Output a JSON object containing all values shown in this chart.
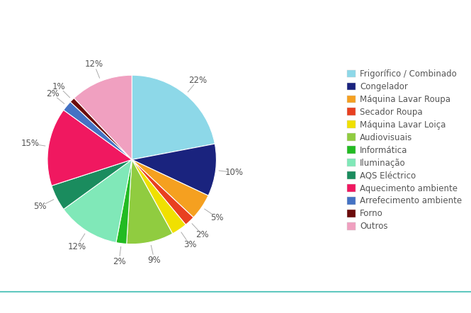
{
  "labels": [
    "Frigorífico / Combinado",
    "Congelador",
    "Máquina Lavar Roupa",
    "Secador Roupa",
    "Máquina Lavar Loiça",
    "Audiovisuais",
    "Informática",
    "Iluminação",
    "AQS Eléctrico",
    "Aquecimento ambiente",
    "Arrefecimento ambiente",
    "Forno",
    "Outros"
  ],
  "values": [
    22,
    10,
    5,
    2,
    3,
    9,
    2,
    12,
    5,
    15,
    2,
    1,
    12
  ],
  "colors": [
    "#8dd8e8",
    "#1a237e",
    "#f5a020",
    "#e84020",
    "#f0e000",
    "#90cc40",
    "#22bb22",
    "#80e8b8",
    "#1a8c5e",
    "#f01860",
    "#4472c4",
    "#6b0a0a",
    "#f0a0c0"
  ],
  "background_color": "#ffffff",
  "text_color": "#555555",
  "line_color": "#aaaaaa",
  "pct_fontsize": 8.5,
  "legend_fontsize": 8.5
}
